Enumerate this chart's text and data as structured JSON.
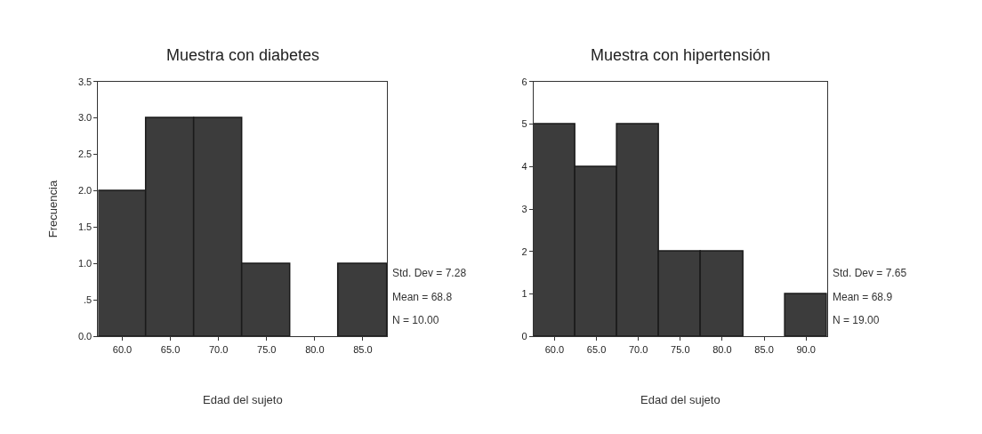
{
  "chart_data": [
    {
      "type": "histogram",
      "title": "Muestra con diabetes",
      "xlabel": "Edad del sujeto",
      "ylabel": "Frecuencia",
      "color": "#3c3c3c",
      "bins": [
        57.5,
        62.5,
        67.5,
        72.5,
        77.5,
        82.5,
        87.5
      ],
      "values": [
        2,
        3,
        3,
        1,
        0,
        1
      ],
      "xlim": [
        57.5,
        87.5
      ],
      "xticks": [
        {
          "value": 60,
          "label": "60.0"
        },
        {
          "value": 65,
          "label": "65.0"
        },
        {
          "value": 70,
          "label": "70.0"
        },
        {
          "value": 75,
          "label": "75.0"
        },
        {
          "value": 80,
          "label": "80.0"
        },
        {
          "value": 85,
          "label": "85.0"
        }
      ],
      "ylim": [
        0,
        3.5
      ],
      "yticks": [
        {
          "value": 0,
          "label": "0.0"
        },
        {
          "value": 0.5,
          "label": ".5"
        },
        {
          "value": 1,
          "label": "1.0"
        },
        {
          "value": 1.5,
          "label": "1.5"
        },
        {
          "value": 2,
          "label": "2.0"
        },
        {
          "value": 2.5,
          "label": "2.5"
        },
        {
          "value": 3,
          "label": "3.0"
        },
        {
          "value": 3.5,
          "label": "3.5"
        }
      ],
      "annotations": [
        "Std. Dev = 7.28",
        "Mean = 68.8",
        "N = 10.00"
      ]
    },
    {
      "type": "histogram",
      "title": "Muestra con hipertensión",
      "xlabel": "Edad del sujeto",
      "color": "#3c3c3c",
      "bins": [
        57.5,
        62.5,
        67.5,
        72.5,
        77.5,
        82.5,
        87.5,
        92.5
      ],
      "values": [
        5,
        4,
        5,
        2,
        2,
        0,
        1
      ],
      "xlim": [
        57.5,
        92.5
      ],
      "xticks": [
        {
          "value": 60,
          "label": "60.0"
        },
        {
          "value": 65,
          "label": "65.0"
        },
        {
          "value": 70,
          "label": "70.0"
        },
        {
          "value": 75,
          "label": "75.0"
        },
        {
          "value": 80,
          "label": "80.0"
        },
        {
          "value": 85,
          "label": "85.0"
        },
        {
          "value": 90,
          "label": "90.0"
        }
      ],
      "ylim": [
        0,
        6
      ],
      "yticks": [
        0,
        1,
        2,
        3,
        4,
        5,
        6
      ],
      "annotations": [
        "Std. Dev = 7.65",
        "Mean = 68.9",
        "N = 19.00"
      ]
    }
  ]
}
